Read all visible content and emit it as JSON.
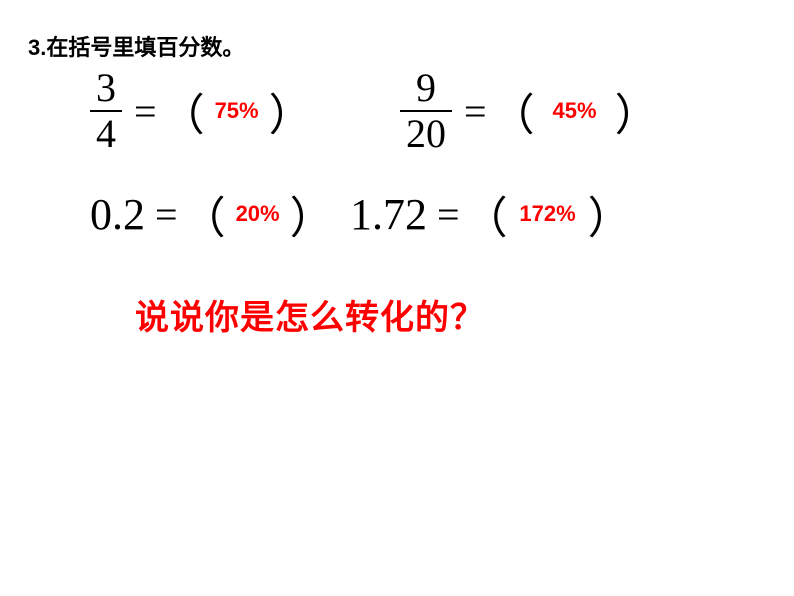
{
  "title": "3.在括号里填百分数。",
  "problems": {
    "p1": {
      "numerator": "3",
      "denominator": "4",
      "answer": "75%"
    },
    "p2": {
      "numerator": "9",
      "denominator": "20",
      "answer": "45%"
    },
    "p3": {
      "value": "0.2",
      "answer": "20%"
    },
    "p4": {
      "value": "1.72",
      "answer": "172%"
    }
  },
  "equals": "=",
  "paren_open": "（",
  "paren_close": "）",
  "question": "说说你是怎么转化的？",
  "colors": {
    "text": "#000000",
    "answer": "#ff0000",
    "question": "#ff0000",
    "background": "#ffffff"
  },
  "fonts": {
    "title_size": 22,
    "math_size": 40,
    "answer_size": 22,
    "question_size": 34
  }
}
